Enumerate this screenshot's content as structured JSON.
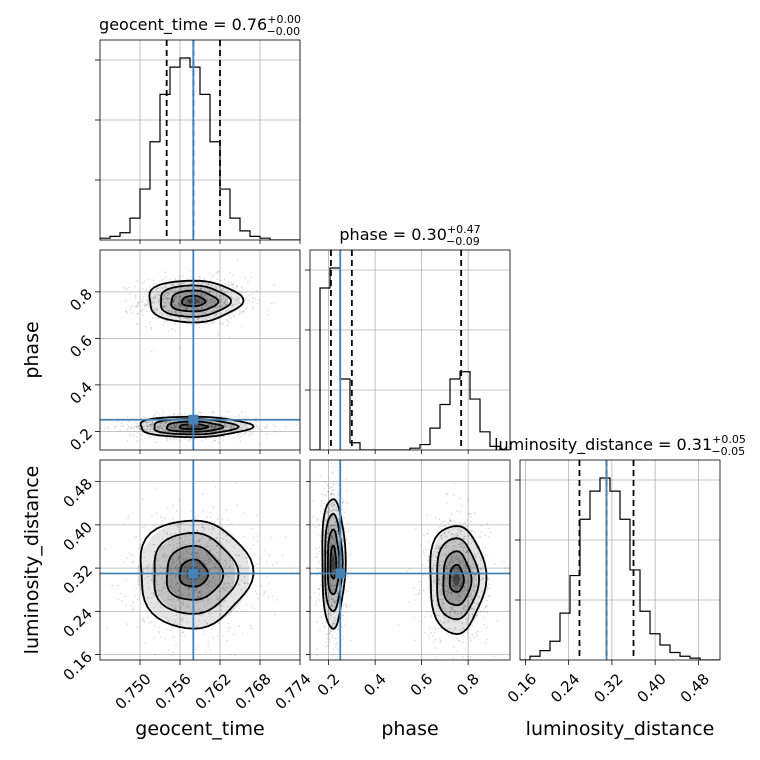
{
  "chart_data": {
    "type": "corner",
    "parameters": [
      {
        "name": "geocent_time",
        "label": "geocent_time",
        "range": [
          0.744,
          0.774
        ],
        "ticks": [
          0.75,
          0.756,
          0.762,
          0.768,
          0.774
        ],
        "tick_labels": [
          "0.750",
          "0.756",
          "0.762",
          "0.768",
          "0.774"
        ],
        "truth": 0.758,
        "title": {
          "main": "geocent_time = 0.76",
          "sup": "+0.00",
          "sub": "−0.00"
        },
        "quantiles": [
          0.754,
          0.758,
          0.762
        ],
        "hist_edges_start": 0.744,
        "hist_bin_width": 0.0015,
        "hist_counts": [
          1,
          2,
          4,
          12,
          28,
          54,
          80,
          95,
          100,
          95,
          80,
          54,
          28,
          12,
          5,
          2,
          1,
          0,
          0,
          0
        ]
      },
      {
        "name": "phase",
        "label": "phase",
        "range": [
          0.12,
          0.98
        ],
        "ticks": [
          0.2,
          0.4,
          0.6,
          0.8
        ],
        "tick_labels": [
          "0.2",
          "0.4",
          "0.6",
          "0.8"
        ],
        "truth": 0.25,
        "title": {
          "main": "phase = 0.30",
          "sup": "+0.47",
          "sub": "−0.09"
        },
        "quantiles": [
          0.21,
          0.3,
          0.77
        ],
        "hist_edges_start": 0.12,
        "hist_bin_width": 0.043,
        "hist_counts": [
          0,
          89,
          100,
          39,
          4,
          0,
          0,
          0,
          0,
          0,
          1,
          3,
          12,
          25,
          39,
          43,
          28,
          10,
          2,
          0
        ]
      },
      {
        "name": "luminosity_distance",
        "label": "luminosity_distance",
        "range": [
          0.15,
          0.52
        ],
        "ticks": [
          0.16,
          0.24,
          0.32,
          0.4,
          0.48
        ],
        "tick_labels": [
          "0.16",
          "0.24",
          "0.32",
          "0.40",
          "0.48"
        ],
        "truth": 0.31,
        "title": {
          "main": "luminosity_distance = 0.31",
          "sup": "+0.05",
          "sub": "−0.05"
        },
        "quantiles": [
          0.26,
          0.31,
          0.36
        ],
        "hist_edges_start": 0.15,
        "hist_bin_width": 0.0185,
        "hist_counts": [
          0,
          2,
          5,
          10,
          25,
          45,
          75,
          90,
          97,
          90,
          75,
          48,
          26,
          14,
          8,
          4,
          2,
          1,
          0,
          0
        ]
      }
    ],
    "pair_plots": [
      {
        "x": "geocent_time",
        "y": "phase",
        "modes": [
          {
            "cx": 0.758,
            "cy": 0.76,
            "sx": 0.0035,
            "sy": 0.045
          },
          {
            "cx": 0.758,
            "cy": 0.22,
            "sx": 0.0042,
            "sy": 0.022
          }
        ]
      },
      {
        "x": "geocent_time",
        "y": "luminosity_distance",
        "modes": [
          {
            "cx": 0.758,
            "cy": 0.31,
            "sx": 0.0042,
            "sy": 0.05
          }
        ]
      },
      {
        "x": "phase",
        "y": "luminosity_distance",
        "modes": [
          {
            "cx": 0.22,
            "cy": 0.33,
            "sx": 0.025,
            "sy": 0.06
          },
          {
            "cx": 0.75,
            "cy": 0.3,
            "sx": 0.06,
            "sy": 0.05
          }
        ]
      }
    ],
    "grid": true,
    "truth_color": "#4682b4"
  }
}
